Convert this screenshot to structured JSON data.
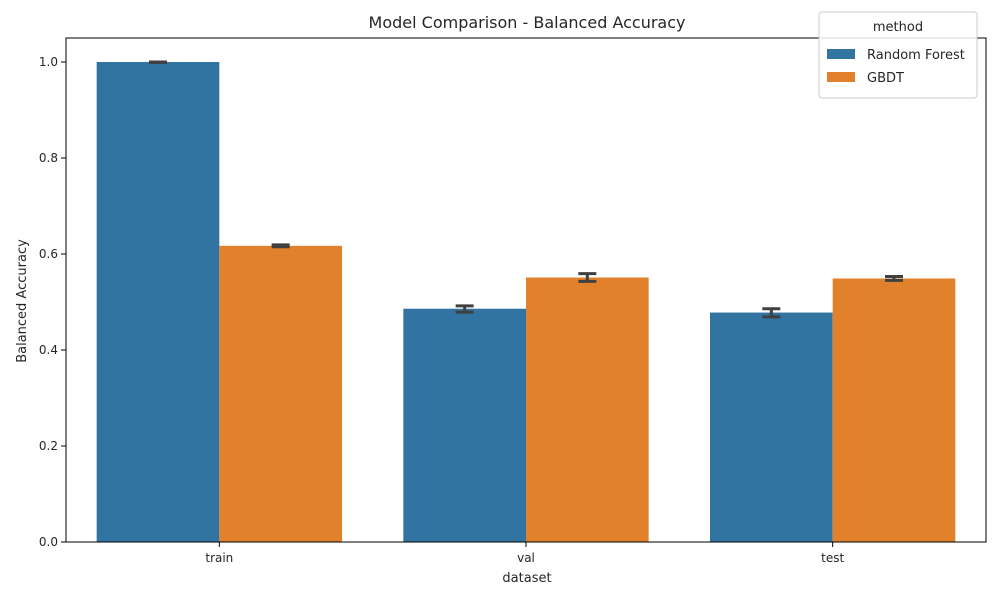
{
  "chart_data": {
    "type": "bar",
    "title": "Model Comparison - Balanced Accuracy",
    "xlabel": "dataset",
    "ylabel": "Balanced Accuracy",
    "categories": [
      "train",
      "val",
      "test"
    ],
    "ylim": [
      0,
      1.05
    ],
    "yticks": [
      0.0,
      0.2,
      0.4,
      0.6,
      0.8,
      1.0
    ],
    "ytick_labels": [
      "0.0",
      "0.2",
      "0.4",
      "0.6",
      "0.8",
      "1.0"
    ],
    "grid": false,
    "legend": {
      "title": "method",
      "placement": "top-right"
    },
    "series": [
      {
        "name": "Random Forest",
        "color": "#3274a1",
        "values": [
          1.0,
          0.486,
          0.478
        ],
        "error_low": [
          0.999,
          0.479,
          0.469
        ],
        "error_high": [
          1.0,
          0.492,
          0.486
        ]
      },
      {
        "name": "GBDT",
        "color": "#e1812c",
        "values": [
          0.617,
          0.551,
          0.549
        ],
        "error_low": [
          0.615,
          0.543,
          0.545
        ],
        "error_high": [
          0.619,
          0.559,
          0.553
        ]
      }
    ]
  }
}
